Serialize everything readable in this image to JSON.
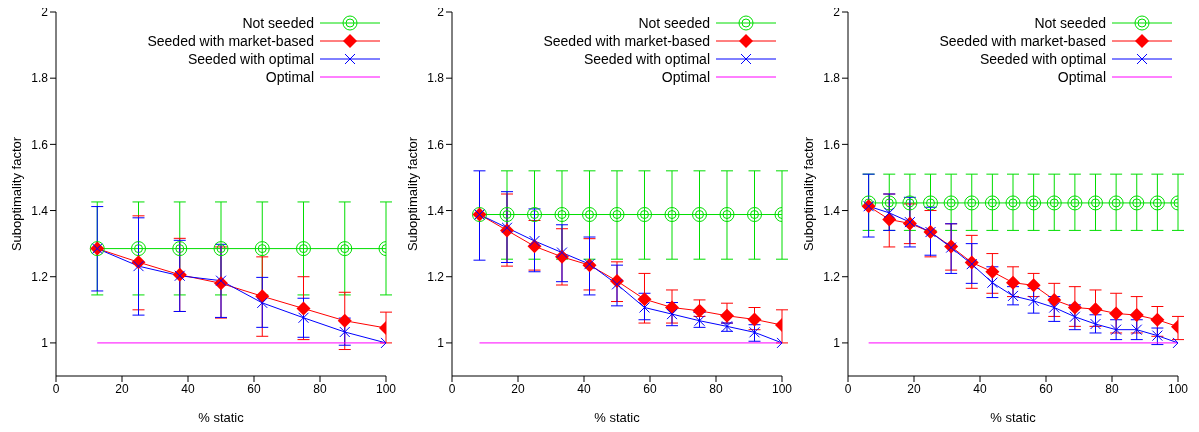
{
  "chart_data": [
    {
      "type": "line",
      "xlabel": "% static",
      "ylabel": "Suboptimality factor",
      "xlim": [
        0,
        100
      ],
      "xticks": [
        0,
        20,
        40,
        60,
        80,
        100
      ],
      "ylim": [
        0.9,
        2
      ],
      "yticks": [
        1,
        1.2,
        1.4,
        1.6,
        1.8,
        2
      ],
      "grid": false,
      "legend": "top right",
      "series": [
        {
          "name": "Not seeded",
          "color": "#00dd00",
          "marker": "circle",
          "x": [
            12.5,
            25,
            37.5,
            50,
            62.5,
            75,
            87.5,
            100
          ],
          "values": [
            1.285,
            1.285,
            1.285,
            1.285,
            1.285,
            1.285,
            1.285,
            1.285
          ],
          "errors": [
            [
              1.145,
              1.426
            ],
            [
              1.145,
              1.426
            ],
            [
              1.145,
              1.426
            ],
            [
              1.145,
              1.426
            ],
            [
              1.145,
              1.426
            ],
            [
              1.145,
              1.426
            ],
            [
              1.145,
              1.426
            ],
            [
              1.145,
              1.426
            ]
          ]
        },
        {
          "name": "Seeded with market-based",
          "color": "#ff0000",
          "marker": "diamond",
          "x": [
            12.5,
            25,
            37.5,
            50,
            62.5,
            75,
            87.5,
            100
          ],
          "values": [
            1.285,
            1.244,
            1.206,
            1.18,
            1.141,
            1.104,
            1.067,
            1.045
          ],
          "errors": [
            null,
            [
              1.1,
              1.384
            ],
            [
              1.095,
              1.316
            ],
            [
              1.075,
              1.29
            ],
            [
              1.02,
              1.26
            ],
            [
              1.01,
              1.2
            ],
            [
              0.98,
              1.153
            ],
            [
              1.0,
              1.093
            ]
          ]
        },
        {
          "name": "Seeded with optimal",
          "color": "#0000ff",
          "marker": "cross",
          "x": [
            12.5,
            25,
            37.5,
            50,
            62.5,
            75,
            87.5,
            100
          ],
          "values": [
            1.285,
            1.232,
            1.203,
            1.188,
            1.121,
            1.076,
            1.033,
            1.0
          ],
          "errors": [
            [
              1.157,
              1.412
            ],
            [
              1.084,
              1.378
            ],
            [
              1.095,
              1.31
            ],
            [
              1.077,
              1.298
            ],
            [
              1.047,
              1.198
            ],
            [
              1.017,
              1.135
            ],
            [
              0.993,
              1.075
            ],
            null
          ]
        },
        {
          "name": "Optimal",
          "color": "#ff00ff",
          "marker": "none",
          "x": [
            12.5,
            100
          ],
          "values": [
            1,
            1
          ]
        }
      ]
    },
    {
      "type": "line",
      "xlabel": "% static",
      "ylabel": "Suboptimality factor",
      "xlim": [
        0,
        100
      ],
      "xticks": [
        0,
        20,
        40,
        60,
        80,
        100
      ],
      "ylim": [
        0.9,
        2
      ],
      "yticks": [
        1,
        1.2,
        1.4,
        1.6,
        1.8,
        2
      ],
      "grid": false,
      "legend": "top right",
      "series": [
        {
          "name": "Not seeded",
          "color": "#00dd00",
          "marker": "circle",
          "x": [
            8.33,
            16.67,
            25,
            33.33,
            41.67,
            50,
            58.33,
            66.67,
            75,
            83.33,
            91.67,
            100
          ],
          "values": [
            1.388,
            1.388,
            1.388,
            1.388,
            1.388,
            1.388,
            1.388,
            1.388,
            1.388,
            1.388,
            1.388,
            1.388
          ],
          "errors": [
            null,
            [
              1.253,
              1.52
            ],
            [
              1.253,
              1.52
            ],
            [
              1.253,
              1.52
            ],
            [
              1.253,
              1.52
            ],
            [
              1.253,
              1.52
            ],
            [
              1.253,
              1.52
            ],
            [
              1.253,
              1.52
            ],
            [
              1.253,
              1.52
            ],
            [
              1.253,
              1.52
            ],
            [
              1.253,
              1.52
            ],
            [
              1.253,
              1.52
            ]
          ]
        },
        {
          "name": "Seeded with market-based",
          "color": "#ff0000",
          "marker": "diamond",
          "x": [
            8.33,
            16.67,
            25,
            33.33,
            41.67,
            50,
            58.33,
            66.67,
            75,
            83.33,
            91.67,
            100
          ],
          "values": [
            1.388,
            1.34,
            1.292,
            1.26,
            1.235,
            1.187,
            1.132,
            1.107,
            1.097,
            1.082,
            1.071,
            1.054
          ],
          "errors": [
            null,
            [
              1.232,
              1.45
            ],
            [
              1.22,
              1.37
            ],
            [
              1.175,
              1.345
            ],
            [
              1.16,
              1.315
            ],
            [
              1.125,
              1.245
            ],
            [
              1.06,
              1.21
            ],
            [
              1.06,
              1.16
            ],
            [
              1.08,
              1.13
            ],
            [
              1.06,
              1.12
            ],
            [
              1.04,
              1.107
            ],
            [
              1.0,
              1.1
            ]
          ]
        },
        {
          "name": "Seeded with optimal",
          "color": "#0000ff",
          "marker": "cross",
          "x": [
            8.33,
            16.67,
            25,
            33.33,
            41.67,
            50,
            58.33,
            66.67,
            75,
            83.33,
            91.67,
            100
          ],
          "values": [
            1.388,
            1.348,
            1.308,
            1.273,
            1.238,
            1.177,
            1.107,
            1.087,
            1.067,
            1.05,
            1.032,
            1.0
          ],
          "errors": [
            [
              1.25,
              1.52
            ],
            [
              1.243,
              1.457
            ],
            [
              1.215,
              1.405
            ],
            [
              1.185,
              1.357
            ],
            [
              1.145,
              1.32
            ],
            [
              1.112,
              1.235
            ],
            [
              1.07,
              1.15
            ],
            [
              1.052,
              1.122
            ],
            [
              1.047,
              1.092
            ],
            [
              1.035,
              1.06
            ],
            [
              1.005,
              1.055
            ],
            null
          ]
        },
        {
          "name": "Optimal",
          "color": "#ff00ff",
          "marker": "none",
          "x": [
            8.33,
            100
          ],
          "values": [
            1,
            1
          ]
        }
      ]
    },
    {
      "type": "line",
      "xlabel": "% static",
      "ylabel": "Suboptimality factor",
      "xlim": [
        0,
        100
      ],
      "xticks": [
        0,
        20,
        40,
        60,
        80,
        100
      ],
      "ylim": [
        0.9,
        2
      ],
      "yticks": [
        1,
        1.2,
        1.4,
        1.6,
        1.8,
        2
      ],
      "grid": false,
      "legend": "top right",
      "series": [
        {
          "name": "Not seeded",
          "color": "#00dd00",
          "marker": "circle",
          "x": [
            6.25,
            12.5,
            18.75,
            25,
            31.25,
            37.5,
            43.75,
            50,
            56.25,
            62.5,
            68.75,
            75,
            81.25,
            87.5,
            93.75,
            100
          ],
          "values": [
            1.423,
            1.423,
            1.423,
            1.423,
            1.423,
            1.423,
            1.423,
            1.423,
            1.423,
            1.423,
            1.423,
            1.423,
            1.423,
            1.423,
            1.423,
            1.423
          ],
          "errors": [
            [
              1.34,
              1.51
            ],
            [
              1.34,
              1.51
            ],
            [
              1.34,
              1.51
            ],
            [
              1.34,
              1.51
            ],
            [
              1.34,
              1.51
            ],
            [
              1.34,
              1.51
            ],
            [
              1.34,
              1.51
            ],
            [
              1.34,
              1.51
            ],
            [
              1.34,
              1.51
            ],
            [
              1.34,
              1.51
            ],
            [
              1.34,
              1.51
            ],
            [
              1.34,
              1.51
            ],
            [
              1.34,
              1.51
            ],
            [
              1.34,
              1.51
            ],
            [
              1.34,
              1.51
            ],
            [
              1.34,
              1.51
            ]
          ]
        },
        {
          "name": "Seeded with market-based",
          "color": "#ff0000",
          "marker": "diamond",
          "x": [
            6.25,
            12.5,
            18.75,
            25,
            31.25,
            37.5,
            43.75,
            50,
            56.25,
            62.5,
            68.75,
            75,
            81.25,
            87.5,
            93.75,
            100
          ],
          "values": [
            1.413,
            1.373,
            1.361,
            1.335,
            1.291,
            1.243,
            1.215,
            1.182,
            1.174,
            1.13,
            1.107,
            1.102,
            1.089,
            1.084,
            1.07,
            1.049
          ],
          "errors": [
            null,
            [
              1.29,
              1.45
            ],
            [
              1.3,
              1.42
            ],
            [
              1.26,
              1.4
            ],
            [
              1.22,
              1.36
            ],
            [
              1.165,
              1.325
            ],
            [
              1.15,
              1.27
            ],
            [
              1.14,
              1.23
            ],
            [
              1.14,
              1.21
            ],
            [
              1.08,
              1.18
            ],
            [
              1.05,
              1.17
            ],
            [
              1.05,
              1.16
            ],
            [
              1.03,
              1.15
            ],
            [
              1.03,
              1.14
            ],
            [
              1.02,
              1.11
            ],
            [
              1.01,
              1.08
            ]
          ]
        },
        {
          "name": "Seeded with optimal",
          "color": "#0000ff",
          "marker": "cross",
          "x": [
            6.25,
            12.5,
            18.75,
            25,
            31.25,
            37.5,
            43.75,
            50,
            56.25,
            62.5,
            68.75,
            75,
            81.25,
            87.5,
            93.75,
            100
          ],
          "values": [
            1.413,
            1.393,
            1.365,
            1.335,
            1.288,
            1.238,
            1.182,
            1.142,
            1.127,
            1.107,
            1.079,
            1.057,
            1.04,
            1.04,
            1.022,
            1.0
          ],
          "errors": [
            [
              1.32,
              1.51
            ],
            [
              1.34,
              1.45
            ],
            [
              1.29,
              1.44
            ],
            [
              1.265,
              1.41
            ],
            [
              1.21,
              1.36
            ],
            [
              1.18,
              1.3
            ],
            [
              1.137,
              1.23
            ],
            [
              1.115,
              1.17
            ],
            [
              1.09,
              1.165
            ],
            [
              1.065,
              1.14
            ],
            [
              1.04,
              1.115
            ],
            [
              1.03,
              1.085
            ],
            [
              1.01,
              1.07
            ],
            [
              1.01,
              1.07
            ],
            [
              0.995,
              1.045
            ],
            null
          ]
        },
        {
          "name": "Optimal",
          "color": "#ff00ff",
          "marker": "none",
          "x": [
            6.25,
            100
          ],
          "values": [
            1,
            1
          ]
        }
      ]
    }
  ]
}
